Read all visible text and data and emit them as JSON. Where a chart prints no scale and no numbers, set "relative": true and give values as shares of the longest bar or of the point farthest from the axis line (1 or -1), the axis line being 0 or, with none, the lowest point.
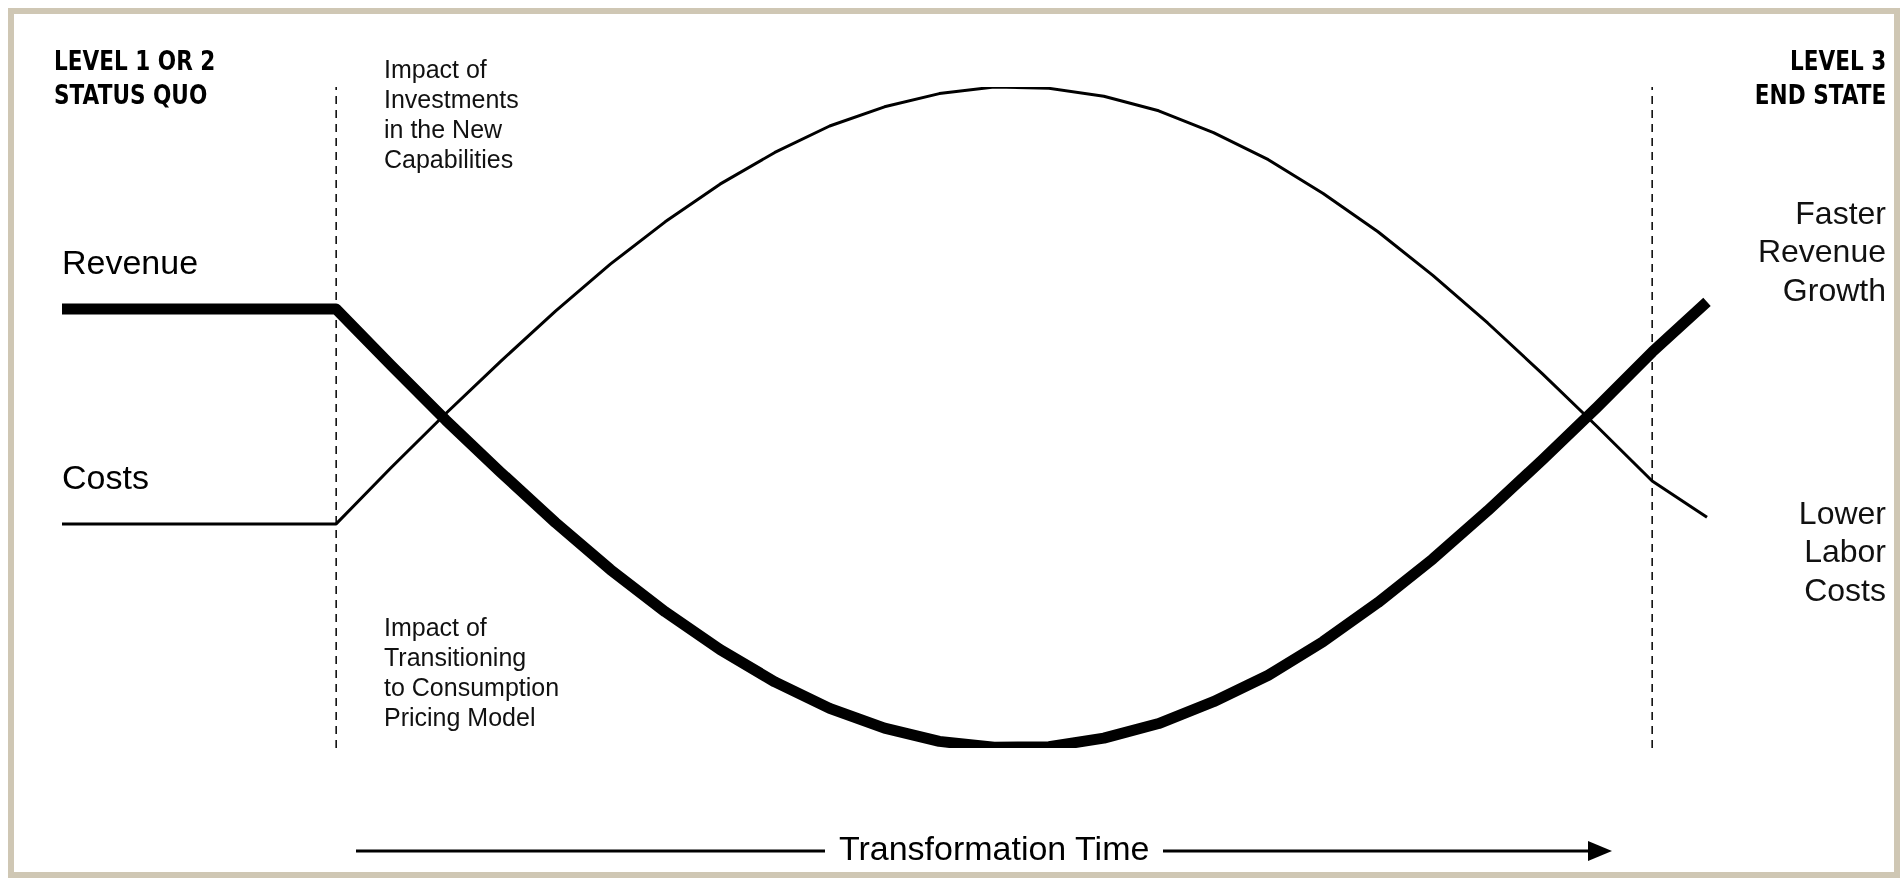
{
  "chart_data": {
    "type": "line",
    "relative": true,
    "title": "LEVEL 1 OR 2\nSTATUS QUO",
    "subtitle": "LEVEL 3\nEND STATE",
    "xlabel": "Transformation Time",
    "categories": [
      null,
      null,
      null,
      null,
      null,
      null,
      null,
      null,
      null,
      null,
      null,
      null,
      null,
      null,
      null,
      null,
      null,
      null,
      null,
      null,
      null,
      null,
      null,
      null,
      null,
      null,
      null,
      null,
      null,
      null,
      null
    ],
    "series": [
      {
        "name": "Revenue",
        "color": "#000000",
        "values": [
          0.664,
          0.664,
          0.664,
          0.664,
          0.664,
          0.664,
          0.579,
          0.496,
          0.417,
          0.341,
          0.27,
          0.206,
          0.149,
          0.1,
          0.06,
          0.03,
          0.01,
          0.001,
          0.002,
          0.015,
          0.037,
          0.07,
          0.11,
          0.161,
          0.22,
          0.286,
          0.359,
          0.436,
          0.516,
          0.599,
          0.675
        ]
      },
      {
        "name": "Costs",
        "color": "#000000",
        "values": [
          0.339,
          0.339,
          0.339,
          0.339,
          0.339,
          0.339,
          0.424,
          0.506,
          0.585,
          0.661,
          0.732,
          0.796,
          0.853,
          0.901,
          0.941,
          0.97,
          0.99,
          1.0,
          0.998,
          0.986,
          0.964,
          0.931,
          0.89,
          0.839,
          0.781,
          0.715,
          0.643,
          0.566,
          0.486,
          0.404,
          0.349
        ]
      }
    ],
    "annotations": [
      "Impact of\nInvestments\nin the New\nCapabilities",
      "Impact of\nTransitioning\nto Consumption\nPricing Model",
      "Faster\nRevenue\nGrowth",
      "Lower\nLabor\nCosts"
    ],
    "legend": false,
    "grid": false,
    "marker": "none",
    "line_style": "solid"
  }
}
